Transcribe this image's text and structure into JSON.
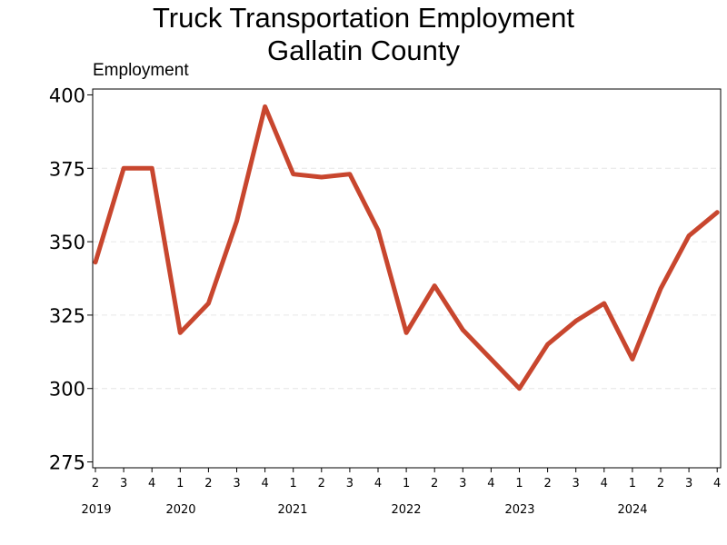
{
  "chart_data": {
    "type": "line",
    "title": "Truck Transportation Employment",
    "subtitle": "Gallatin County",
    "ylabel": "Employment",
    "xlabel": "",
    "ylim": [
      273,
      402
    ],
    "yticks": [
      275,
      300,
      325,
      350,
      375,
      400
    ],
    "grid": "horizontal dashed",
    "legend": "none",
    "line_color": "#c8462e",
    "quarters": [
      "2",
      "3",
      "4",
      "1",
      "2",
      "3",
      "4",
      "1",
      "2",
      "3",
      "4",
      "1",
      "2",
      "3",
      "4",
      "1",
      "2",
      "3",
      "4",
      "1",
      "2",
      "3",
      "4"
    ],
    "years": [
      "2019",
      "2020",
      "2021",
      "2022",
      "2023",
      "2024"
    ],
    "series": [
      {
        "values": [
          343,
          375,
          375,
          319,
          329,
          357,
          396,
          373,
          372,
          373,
          354,
          319,
          335,
          320,
          310,
          300,
          315,
          323,
          329,
          310,
          334,
          352,
          360
        ]
      }
    ]
  }
}
